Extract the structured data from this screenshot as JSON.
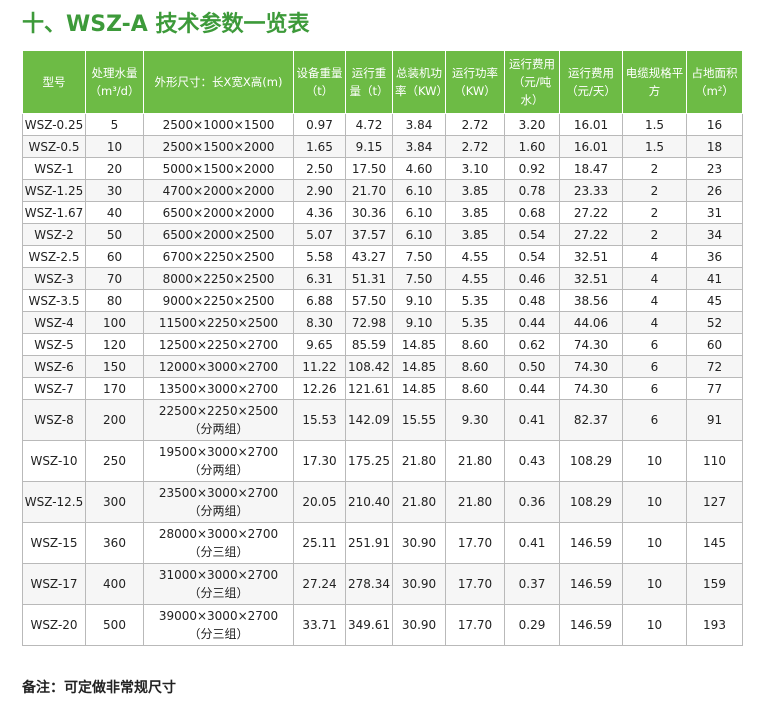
{
  "header": {
    "title": "十、WSZ-A 技术参数一览表"
  },
  "table": {
    "columns": [
      "型号",
      "处理水量（m³/d）",
      "外形尺寸：长X宽X高(m)",
      "设备重量（t）",
      "运行重量（t）",
      "总装机功率（KW）",
      "运行功率（KW）",
      "运行费用（元/吨水）",
      "运行费用（元/天）",
      "电缆规格平方",
      "占地面积（m²）"
    ],
    "rows": [
      [
        "WSZ-0.25",
        "5",
        "2500×1000×1500",
        "0.97",
        "4.72",
        "3.84",
        "2.72",
        "3.20",
        "16.01",
        "1.5",
        "16"
      ],
      [
        "WSZ-0.5",
        "10",
        "2500×1500×2000",
        "1.65",
        "9.15",
        "3.84",
        "2.72",
        "1.60",
        "16.01",
        "1.5",
        "18"
      ],
      [
        "WSZ-1",
        "20",
        "5000×1500×2000",
        "2.50",
        "17.50",
        "4.60",
        "3.10",
        "0.92",
        "18.47",
        "2",
        "23"
      ],
      [
        "WSZ-1.25",
        "30",
        "4700×2000×2000",
        "2.90",
        "21.70",
        "6.10",
        "3.85",
        "0.78",
        "23.33",
        "2",
        "26"
      ],
      [
        "WSZ-1.67",
        "40",
        "6500×2000×2000",
        "4.36",
        "30.36",
        "6.10",
        "3.85",
        "0.68",
        "27.22",
        "2",
        "31"
      ],
      [
        "WSZ-2",
        "50",
        "6500×2000×2500",
        "5.07",
        "37.57",
        "6.10",
        "3.85",
        "0.54",
        "27.22",
        "2",
        "34"
      ],
      [
        "WSZ-2.5",
        "60",
        "6700×2250×2500",
        "5.58",
        "43.27",
        "7.50",
        "4.55",
        "0.54",
        "32.51",
        "4",
        "36"
      ],
      [
        "WSZ-3",
        "70",
        "8000×2250×2500",
        "6.31",
        "51.31",
        "7.50",
        "4.55",
        "0.46",
        "32.51",
        "4",
        "41"
      ],
      [
        "WSZ-3.5",
        "80",
        "9000×2250×2500",
        "6.88",
        "57.50",
        "9.10",
        "5.35",
        "0.48",
        "38.56",
        "4",
        "45"
      ],
      [
        "WSZ-4",
        "100",
        "11500×2250×2500",
        "8.30",
        "72.98",
        "9.10",
        "5.35",
        "0.44",
        "44.06",
        "4",
        "52"
      ],
      [
        "WSZ-5",
        "120",
        "12500×2250×2700",
        "9.65",
        "85.59",
        "14.85",
        "8.60",
        "0.62",
        "74.30",
        "6",
        "60"
      ],
      [
        "WSZ-6",
        "150",
        "12000×3000×2700",
        "11.22",
        "108.42",
        "14.85",
        "8.60",
        "0.50",
        "74.30",
        "6",
        "72"
      ],
      [
        "WSZ-7",
        "170",
        "13500×3000×2700",
        "12.26",
        "121.61",
        "14.85",
        "8.60",
        "0.44",
        "74.30",
        "6",
        "77"
      ],
      [
        "WSZ-8",
        "200",
        "22500×2250×2500\n（分两组）",
        "15.53",
        "142.09",
        "15.55",
        "9.30",
        "0.41",
        "82.37",
        "6",
        "91"
      ],
      [
        "WSZ-10",
        "250",
        "19500×3000×2700\n（分两组）",
        "17.30",
        "175.25",
        "21.80",
        "21.80",
        "0.43",
        "108.29",
        "10",
        "110"
      ],
      [
        "WSZ-12.5",
        "300",
        "23500×3000×2700\n（分两组）",
        "20.05",
        "210.40",
        "21.80",
        "21.80",
        "0.36",
        "108.29",
        "10",
        "127"
      ],
      [
        "WSZ-15",
        "360",
        "28000×3000×2700\n（分三组）",
        "25.11",
        "251.91",
        "30.90",
        "17.70",
        "0.41",
        "146.59",
        "10",
        "145"
      ],
      [
        "WSZ-17",
        "400",
        "31000×3000×2700\n（分三组）",
        "27.24",
        "278.34",
        "30.90",
        "17.70",
        "0.37",
        "146.59",
        "10",
        "159"
      ],
      [
        "WSZ-20",
        "500",
        "39000×3000×2700\n（分三组）",
        "33.71",
        "349.61",
        "30.90",
        "17.70",
        "0.29",
        "146.59",
        "10",
        "193"
      ]
    ]
  },
  "footer": {
    "note": "备注：可定做非常规尺寸"
  }
}
